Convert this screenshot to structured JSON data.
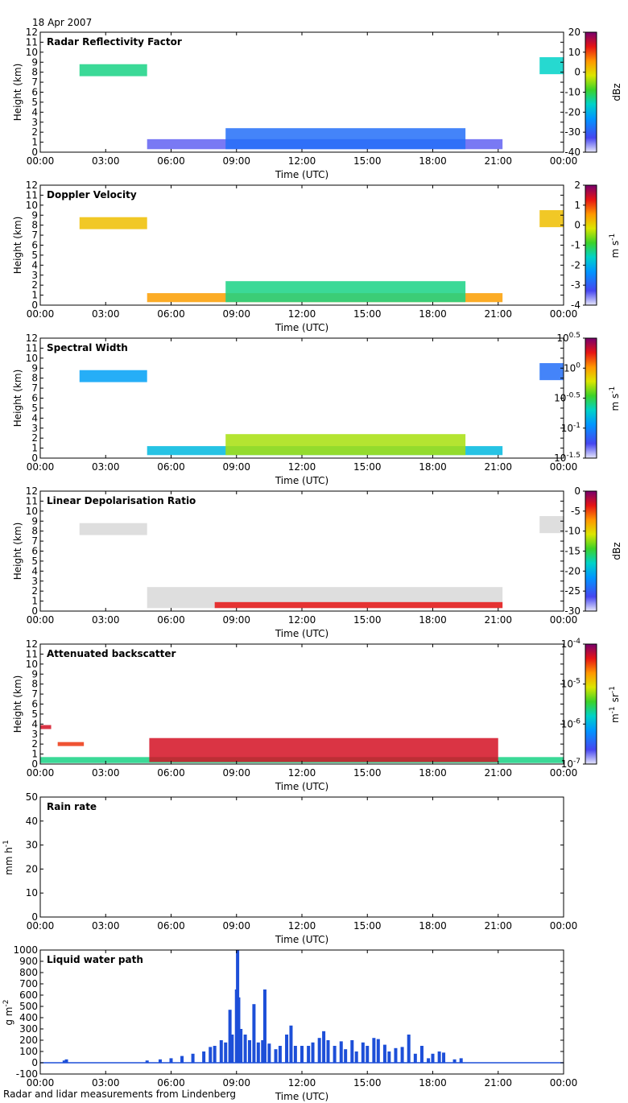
{
  "date": "18 Apr 2007",
  "footer": "Radar and lidar measurements from Lindenberg",
  "x_ticks": [
    "00:00",
    "03:00",
    "06:00",
    "09:00",
    "12:00",
    "15:00",
    "18:00",
    "21:00",
    "00:00"
  ],
  "x_label": "Time (UTC)",
  "chart_data": [
    {
      "type": "heatmap",
      "title": "Radar Reflectivity Factor",
      "ylabel": "Height (km)",
      "xlabel": "Time (UTC)",
      "xlim": [
        0,
        24
      ],
      "ylim": [
        0,
        12
      ],
      "yticks": [
        "0",
        "1",
        "2",
        "3",
        "4",
        "5",
        "6",
        "7",
        "8",
        "9",
        "10",
        "11",
        "12"
      ],
      "colorbar": {
        "unit": "dBz",
        "ticks": [
          "20",
          "10",
          "0",
          "-10",
          "-20",
          "-30",
          "-40"
        ],
        "range": [
          -40,
          20
        ]
      },
      "regions": [
        {
          "x0": 1.8,
          "x1": 4.9,
          "y0": 7.6,
          "y1": 8.8,
          "level": 0.45
        },
        {
          "x0": 4.9,
          "x1": 21.2,
          "y0": 0.3,
          "y1": 1.3,
          "level": 0.1
        },
        {
          "x0": 8.5,
          "x1": 19.5,
          "y0": 0.3,
          "y1": 2.4,
          "level": 0.2
        },
        {
          "x0": 22.9,
          "x1": 24,
          "y0": 7.8,
          "y1": 9.5,
          "level": 0.4
        }
      ]
    },
    {
      "type": "heatmap",
      "title": "Doppler Velocity",
      "ylabel": "Height (km)",
      "xlabel": "Time (UTC)",
      "xlim": [
        0,
        24
      ],
      "ylim": [
        0,
        12
      ],
      "yticks": [
        "0",
        "1",
        "2",
        "3",
        "4",
        "5",
        "6",
        "7",
        "8",
        "9",
        "10",
        "11",
        "12"
      ],
      "colorbar": {
        "unit": "m s-1",
        "ticks": [
          "2",
          "1",
          "0",
          "-1",
          "-2",
          "-3",
          "-4"
        ],
        "range": [
          -4,
          2
        ]
      },
      "regions": [
        {
          "x0": 1.8,
          "x1": 4.9,
          "y0": 7.6,
          "y1": 8.8,
          "level": 0.7
        },
        {
          "x0": 4.9,
          "x1": 21.2,
          "y0": 0.3,
          "y1": 1.2,
          "level": 0.75
        },
        {
          "x0": 8.5,
          "x1": 19.5,
          "y0": 0.3,
          "y1": 2.4,
          "level": 0.45
        },
        {
          "x0": 22.9,
          "x1": 24,
          "y0": 7.8,
          "y1": 9.5,
          "level": 0.7
        }
      ]
    },
    {
      "type": "heatmap",
      "title": "Spectral Width",
      "ylabel": "Height (km)",
      "xlabel": "Time (UTC)",
      "xlim": [
        0,
        24
      ],
      "ylim": [
        0,
        12
      ],
      "yticks": [
        "0",
        "1",
        "2",
        "3",
        "4",
        "5",
        "6",
        "7",
        "8",
        "9",
        "10",
        "11",
        "12"
      ],
      "colorbar": {
        "unit": "m s-1",
        "ticks": [
          "10^0.5",
          "10^0",
          "10^-0.5",
          "10^-1",
          "10^-1.5"
        ],
        "range": [
          -1.5,
          0.5
        ]
      },
      "regions": [
        {
          "x0": 1.8,
          "x1": 4.9,
          "y0": 7.6,
          "y1": 8.8,
          "level": 0.3
        },
        {
          "x0": 4.9,
          "x1": 21.2,
          "y0": 0.3,
          "y1": 1.2,
          "level": 0.35
        },
        {
          "x0": 8.5,
          "x1": 19.5,
          "y0": 0.3,
          "y1": 2.4,
          "level": 0.6
        },
        {
          "x0": 22.9,
          "x1": 24,
          "y0": 7.8,
          "y1": 9.5,
          "level": 0.2
        }
      ]
    },
    {
      "type": "heatmap",
      "title": "Linear Depolarisation Ratio",
      "ylabel": "Height (km)",
      "xlabel": "Time (UTC)",
      "xlim": [
        0,
        24
      ],
      "ylim": [
        0,
        12
      ],
      "yticks": [
        "0",
        "1",
        "2",
        "3",
        "4",
        "5",
        "6",
        "7",
        "8",
        "9",
        "10",
        "11",
        "12"
      ],
      "colorbar": {
        "unit": "dBz",
        "ticks": [
          "0",
          "-5",
          "-10",
          "-15",
          "-20",
          "-25",
          "-30"
        ],
        "range": [
          -30,
          0
        ]
      },
      "regions": [
        {
          "x0": 1.8,
          "x1": 4.9,
          "y0": 7.6,
          "y1": 8.8,
          "level": -1
        },
        {
          "x0": 4.9,
          "x1": 21.2,
          "y0": 0.3,
          "y1": 2.4,
          "level": -1
        },
        {
          "x0": 8.0,
          "x1": 21.2,
          "y0": 0.3,
          "y1": 0.9,
          "level": 0.88
        },
        {
          "x0": 22.9,
          "x1": 24,
          "y0": 7.8,
          "y1": 9.5,
          "level": -1
        }
      ]
    },
    {
      "type": "heatmap",
      "title": "Attenuated backscatter",
      "ylabel": "Height (km)",
      "xlabel": "Time (UTC)",
      "xlim": [
        0,
        24
      ],
      "ylim": [
        0,
        12
      ],
      "yticks": [
        "0",
        "1",
        "2",
        "3",
        "4",
        "5",
        "6",
        "7",
        "8",
        "9",
        "10",
        "11",
        "12"
      ],
      "colorbar": {
        "unit": "m-1 sr-1",
        "ticks": [
          "10^-4",
          "10^-5",
          "10^-6",
          "10^-7"
        ],
        "range": [
          -7,
          -4
        ]
      },
      "regions": [
        {
          "x0": 0,
          "x1": 24,
          "y0": 0.1,
          "y1": 0.7,
          "level": 0.45
        },
        {
          "x0": 0,
          "x1": 0.5,
          "y0": 3.5,
          "y1": 3.9,
          "level": 0.9
        },
        {
          "x0": 0.8,
          "x1": 2.0,
          "y0": 1.8,
          "y1": 2.2,
          "level": 0.85
        },
        {
          "x0": 5.0,
          "x1": 21.0,
          "y0": 0.2,
          "y1": 2.6,
          "level": 0.9
        }
      ]
    },
    {
      "type": "line",
      "title": "Rain rate",
      "ylabel": "mm h-1",
      "xlabel": "Time (UTC)",
      "xlim": [
        0,
        24
      ],
      "ylim": [
        0,
        50
      ],
      "yticks": [
        "0",
        "10",
        "20",
        "30",
        "40",
        "50"
      ],
      "x": [],
      "values": []
    },
    {
      "type": "bar",
      "title": "Liquid water path",
      "ylabel": "g m-2",
      "xlabel": "Time (UTC)",
      "xlim": [
        0,
        24
      ],
      "ylim": [
        -100,
        1000
      ],
      "yticks": [
        "-100",
        "0",
        "100",
        "200",
        "300",
        "400",
        "500",
        "600",
        "700",
        "800",
        "900",
        "1000"
      ],
      "x": [
        1.1,
        1.2,
        4.9,
        5.5,
        6.0,
        6.5,
        7.0,
        7.5,
        7.8,
        8.0,
        8.3,
        8.5,
        8.7,
        8.8,
        9.0,
        9.05,
        9.1,
        9.2,
        9.4,
        9.6,
        9.8,
        10.0,
        10.2,
        10.3,
        10.5,
        10.8,
        11.0,
        11.3,
        11.5,
        11.7,
        12.0,
        12.3,
        12.5,
        12.8,
        13.0,
        13.2,
        13.5,
        13.8,
        14.0,
        14.3,
        14.5,
        14.8,
        15.0,
        15.3,
        15.5,
        15.8,
        16.0,
        16.3,
        16.6,
        16.9,
        17.2,
        17.5,
        17.8,
        18.0,
        18.3,
        18.5,
        19.0,
        19.3
      ],
      "values": [
        20,
        30,
        20,
        30,
        40,
        60,
        80,
        100,
        140,
        150,
        200,
        180,
        470,
        250,
        650,
        1000,
        580,
        300,
        250,
        200,
        520,
        180,
        200,
        650,
        170,
        120,
        150,
        250,
        330,
        150,
        150,
        150,
        180,
        220,
        280,
        200,
        150,
        190,
        120,
        200,
        100,
        180,
        150,
        220,
        210,
        160,
        100,
        130,
        140,
        250,
        80,
        150,
        40,
        80,
        100,
        90,
        30,
        40
      ]
    }
  ]
}
